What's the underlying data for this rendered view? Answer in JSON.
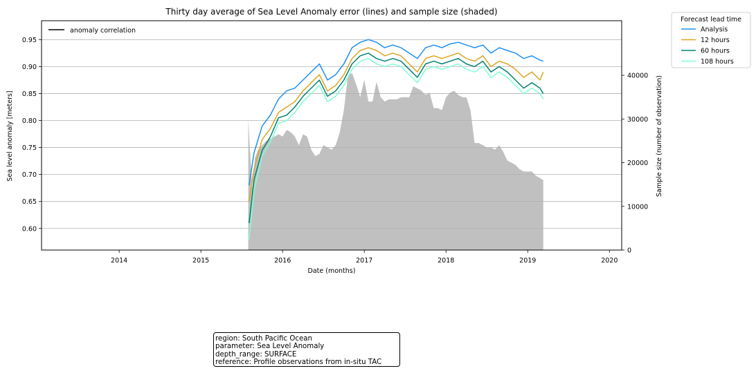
{
  "chart_data": {
    "type": "line",
    "title": "Thirty day average of Sea Level Anomaly error (lines) and sample size (shaded)",
    "xlabel": "Date (months)",
    "ylabel": "Sea level anomaly [meters]",
    "y2label": "Sample size (number of observation)",
    "xlim": [
      2013.05,
      2020.15
    ],
    "ylim": [
      0.56,
      0.985
    ],
    "y2lim": [
      0,
      52500
    ],
    "xticks": [
      "2014",
      "2015",
      "2016",
      "2017",
      "2018",
      "2019",
      "2020"
    ],
    "yticks": [
      "0.60",
      "0.65",
      "0.70",
      "0.75",
      "0.80",
      "0.85",
      "0.90",
      "0.95"
    ],
    "y2ticks": [
      "0",
      "10000",
      "20000",
      "30000",
      "40000"
    ],
    "grid": "horizontal",
    "inner_legend": {
      "label": "anomaly correlation",
      "color": "#000000",
      "placement": "upper-left"
    },
    "legend": {
      "title": "Forecast lead time",
      "placement": "outside-upper-right"
    },
    "series": [
      {
        "name": "Analysis",
        "color": "#1e8ff0",
        "x": [
          2015.59,
          2015.65,
          2015.75,
          2015.85,
          2015.95,
          2016.05,
          2016.15,
          2016.25,
          2016.35,
          2016.45,
          2016.55,
          2016.65,
          2016.75,
          2016.85,
          2016.95,
          2017.05,
          2017.15,
          2017.25,
          2017.35,
          2017.45,
          2017.55,
          2017.65,
          2017.75,
          2017.85,
          2017.95,
          2018.05,
          2018.15,
          2018.25,
          2018.35,
          2018.45,
          2018.55,
          2018.65,
          2018.75,
          2018.85,
          2018.95,
          2019.05,
          2019.15,
          2019.19
        ],
        "values": [
          0.68,
          0.74,
          0.79,
          0.81,
          0.84,
          0.855,
          0.86,
          0.875,
          0.89,
          0.905,
          0.875,
          0.885,
          0.905,
          0.935,
          0.945,
          0.95,
          0.945,
          0.935,
          0.94,
          0.935,
          0.925,
          0.915,
          0.935,
          0.94,
          0.935,
          0.942,
          0.945,
          0.94,
          0.935,
          0.94,
          0.925,
          0.935,
          0.93,
          0.925,
          0.915,
          0.92,
          0.912,
          0.91
        ]
      },
      {
        "name": "12 hours",
        "color": "#daa520",
        "x": [
          2015.59,
          2015.65,
          2015.75,
          2015.85,
          2015.95,
          2016.05,
          2016.15,
          2016.25,
          2016.35,
          2016.45,
          2016.55,
          2016.65,
          2016.75,
          2016.85,
          2016.95,
          2017.05,
          2017.15,
          2017.25,
          2017.35,
          2017.45,
          2017.55,
          2017.65,
          2017.75,
          2017.85,
          2017.95,
          2018.05,
          2018.15,
          2018.25,
          2018.35,
          2018.45,
          2018.55,
          2018.65,
          2018.75,
          2018.85,
          2018.95,
          2019.05,
          2019.15,
          2019.19
        ],
        "values": [
          0.65,
          0.71,
          0.765,
          0.785,
          0.815,
          0.825,
          0.835,
          0.855,
          0.87,
          0.885,
          0.855,
          0.865,
          0.885,
          0.915,
          0.93,
          0.935,
          0.93,
          0.92,
          0.925,
          0.92,
          0.905,
          0.89,
          0.915,
          0.92,
          0.915,
          0.92,
          0.925,
          0.915,
          0.91,
          0.92,
          0.9,
          0.91,
          0.905,
          0.895,
          0.88,
          0.89,
          0.875,
          0.89
        ]
      },
      {
        "name": "60 hours",
        "color": "#008070",
        "x": [
          2015.59,
          2015.65,
          2015.75,
          2015.85,
          2015.95,
          2016.05,
          2016.15,
          2016.25,
          2016.35,
          2016.45,
          2016.55,
          2016.65,
          2016.75,
          2016.85,
          2016.95,
          2017.05,
          2017.15,
          2017.25,
          2017.35,
          2017.45,
          2017.55,
          2017.65,
          2017.75,
          2017.85,
          2017.95,
          2018.05,
          2018.15,
          2018.25,
          2018.35,
          2018.45,
          2018.55,
          2018.65,
          2018.75,
          2018.85,
          2018.95,
          2019.05,
          2019.15,
          2019.19
        ],
        "values": [
          0.61,
          0.69,
          0.745,
          0.77,
          0.805,
          0.81,
          0.825,
          0.845,
          0.86,
          0.875,
          0.845,
          0.855,
          0.875,
          0.905,
          0.92,
          0.925,
          0.915,
          0.91,
          0.915,
          0.91,
          0.895,
          0.88,
          0.905,
          0.91,
          0.905,
          0.91,
          0.915,
          0.905,
          0.9,
          0.91,
          0.89,
          0.9,
          0.89,
          0.875,
          0.86,
          0.87,
          0.86,
          0.85
        ]
      },
      {
        "name": "108 hours",
        "color": "#7fffd4",
        "x": [
          2015.59,
          2015.65,
          2015.75,
          2015.85,
          2015.95,
          2016.05,
          2016.15,
          2016.25,
          2016.35,
          2016.45,
          2016.55,
          2016.65,
          2016.75,
          2016.85,
          2016.95,
          2017.05,
          2017.15,
          2017.25,
          2017.35,
          2017.45,
          2017.55,
          2017.65,
          2017.75,
          2017.85,
          2017.95,
          2018.05,
          2018.15,
          2018.25,
          2018.35,
          2018.45,
          2018.55,
          2018.65,
          2018.75,
          2018.85,
          2018.95,
          2019.05,
          2019.15,
          2019.19
        ],
        "values": [
          0.58,
          0.67,
          0.735,
          0.76,
          0.795,
          0.8,
          0.815,
          0.835,
          0.85,
          0.865,
          0.835,
          0.845,
          0.865,
          0.895,
          0.91,
          0.915,
          0.905,
          0.9,
          0.905,
          0.9,
          0.885,
          0.87,
          0.895,
          0.9,
          0.895,
          0.9,
          0.905,
          0.895,
          0.89,
          0.9,
          0.88,
          0.89,
          0.88,
          0.865,
          0.85,
          0.86,
          0.85,
          0.84
        ]
      }
    ],
    "sample_size": {
      "color": "#c0c0c0",
      "x": [
        2015.58,
        2015.6,
        2015.63,
        2015.66,
        2015.7,
        2015.75,
        2015.8,
        2015.85,
        2015.9,
        2015.95,
        2016.0,
        2016.05,
        2016.1,
        2016.15,
        2016.2,
        2016.25,
        2016.3,
        2016.35,
        2016.4,
        2016.45,
        2016.5,
        2016.55,
        2016.6,
        2016.65,
        2016.7,
        2016.75,
        2016.8,
        2016.85,
        2016.9,
        2016.95,
        2017.0,
        2017.05,
        2017.1,
        2017.15,
        2017.2,
        2017.25,
        2017.3,
        2017.35,
        2017.4,
        2017.45,
        2017.5,
        2017.55,
        2017.6,
        2017.65,
        2017.7,
        2017.75,
        2017.8,
        2017.85,
        2017.9,
        2017.95,
        2018.0,
        2018.05,
        2018.1,
        2018.15,
        2018.2,
        2018.25,
        2018.3,
        2018.35,
        2018.4,
        2018.45,
        2018.5,
        2018.55,
        2018.6,
        2018.65,
        2018.7,
        2018.75,
        2018.8,
        2018.85,
        2018.9,
        2018.95,
        2019.0,
        2019.05,
        2019.1,
        2019.15,
        2019.19
      ],
      "values": [
        30000,
        23000,
        14000,
        21000,
        23000,
        24000,
        25000,
        25500,
        26000,
        26500,
        26000,
        27500,
        27000,
        26000,
        24000,
        26500,
        26000,
        23000,
        21500,
        22000,
        24000,
        23500,
        23000,
        24000,
        27000,
        32000,
        40000,
        40500,
        38000,
        35000,
        39000,
        34000,
        34000,
        38500,
        35000,
        34000,
        34500,
        34500,
        34500,
        35000,
        35000,
        35000,
        37500,
        37000,
        36500,
        35500,
        36000,
        32500,
        32500,
        32000,
        35000,
        36000,
        36500,
        35500,
        35000,
        35000,
        32000,
        24500,
        24500,
        24000,
        23500,
        23500,
        23000,
        24000,
        22500,
        20500,
        20000,
        19500,
        18500,
        18000,
        18000,
        18000,
        17000,
        16500,
        16000
      ]
    }
  },
  "infobox": {
    "lines": [
      "region: South Pacific Ocean",
      "parameter: Sea Level Anomaly",
      "depth_range: SURFACE",
      "reference: Profile observations from in-situ TAC"
    ]
  }
}
